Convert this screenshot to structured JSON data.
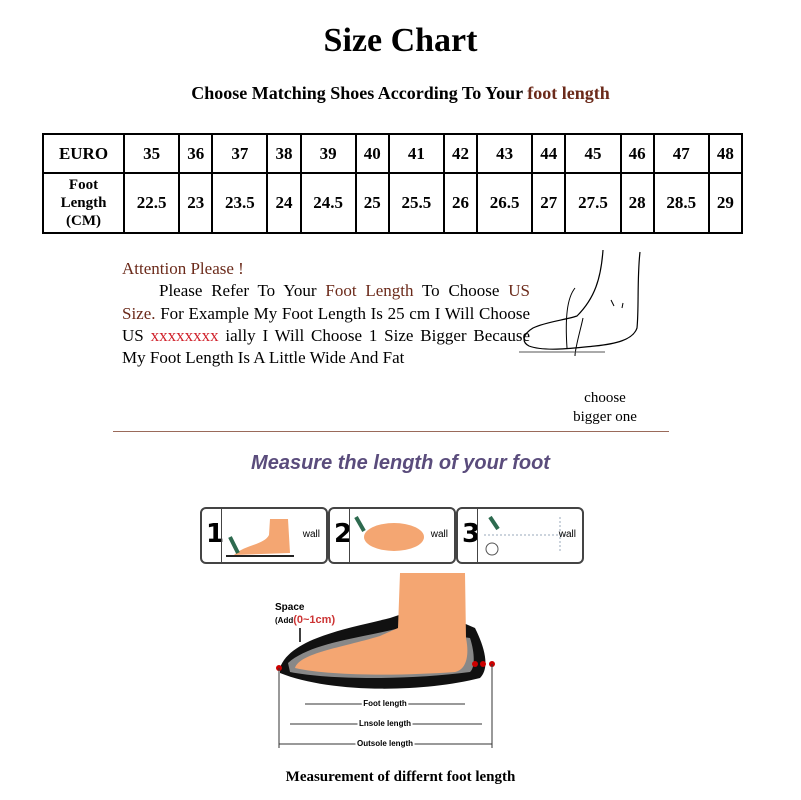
{
  "title": "Size Chart",
  "subtitle": {
    "prefix": "Choose Matching Shoes According To Your ",
    "highlight": "foot length"
  },
  "table": {
    "row1_header": "EURO",
    "row2_header": [
      "Foot",
      "Length",
      "(CM)"
    ],
    "euro": [
      "35",
      "36",
      "37",
      "38",
      "39",
      "40",
      "41",
      "42",
      "43",
      "44",
      "45",
      "46",
      "47",
      "48"
    ],
    "foot_length_cm": [
      "22.5",
      "23",
      "23.5",
      "24",
      "24.5",
      "25",
      "25.5",
      "26",
      "26.5",
      "27",
      "27.5",
      "28",
      "28.5",
      "29"
    ]
  },
  "note": {
    "heading": "Attention Please !",
    "p1": "Please Refer To Your ",
    "p2": "Foot Length",
    "p3": " To Choose ",
    "p4": "US Size.",
    "p5": " For Example My Foot Length Is 25 cm I Will Choose US ",
    "p6": "xxxxxxxx",
    "p7": " ially I Will Choose 1 Size Bigger Because My Foot Length Is A Little Wide And Fat"
  },
  "choose_label": [
    "choose",
    "bigger one"
  ],
  "measure_title": "Measure the length of your foot",
  "steps": [
    {
      "num": "1",
      "label": "wall"
    },
    {
      "num": "2",
      "label": "wall"
    },
    {
      "num": "3",
      "label": "wall"
    }
  ],
  "diagram": {
    "space": "Space",
    "add_prefix": "(Add",
    "add_value": "(0~1cm)",
    "foot_length": "Foot length",
    "insole_length": "Lnsole length",
    "outsole_length": "Outsole length"
  },
  "caption": "Measurement of differnt foot length",
  "colors": {
    "highlight": "#6b2a1a",
    "red": "#d0202a",
    "measure": "#5a4c7c",
    "skin": "#f4a672"
  }
}
